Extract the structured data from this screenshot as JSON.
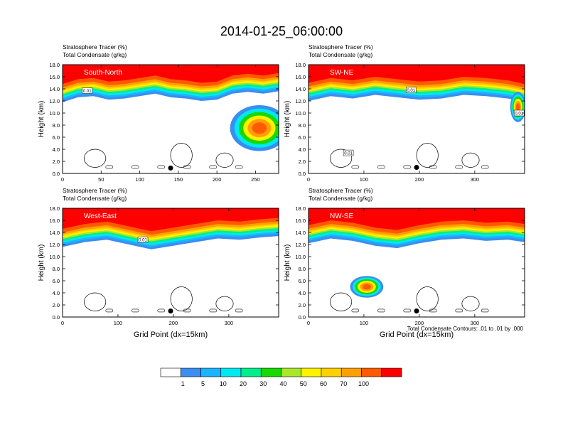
{
  "title": "2014-01-25_06:00:00",
  "contour_note": "Total Condensate Contours: .01 to .01 by .000",
  "colorbar": {
    "colors": [
      "#ffffff",
      "#3a8ef0",
      "#1ab4ff",
      "#00e8f0",
      "#00ee8a",
      "#18d800",
      "#a8e828",
      "#fff200",
      "#ffd000",
      "#ffa000",
      "#ff5a00",
      "#ff0000"
    ],
    "labels": [
      "1",
      "5",
      "10",
      "20",
      "30",
      "40",
      "50",
      "60",
      "70",
      "100"
    ]
  },
  "chart_data": [
    {
      "type": "heatmap",
      "header_line1": "Stratosphere Tracer   (%)",
      "header_line2": "Total Condensate   (g/kg)",
      "panel_label": "South-North",
      "ylabel": "Height (km)",
      "xlabel": "",
      "xlim": [
        0,
        280
      ],
      "ylim": [
        0,
        18
      ],
      "xticks": [
        "0",
        "50",
        "100",
        "150",
        "200",
        "250"
      ],
      "xtick_values": [
        0,
        50,
        100,
        150,
        200,
        250
      ],
      "yticks": [
        "0.0",
        "2.0",
        "4.0",
        "6.0",
        "8.0",
        "10.0",
        "12.0",
        "14.0",
        "16.0",
        "18.0"
      ],
      "contour_labels": [
        {
          "text": "0.01",
          "x": 32,
          "y": 13.7
        }
      ],
      "marker": {
        "x": 140,
        "y": 0.9
      },
      "tracer_base": [
        [
          0,
          13.6
        ],
        [
          20,
          14.4
        ],
        [
          40,
          14.6
        ],
        [
          60,
          14.0
        ],
        [
          80,
          14.2
        ],
        [
          100,
          14.6
        ],
        [
          120,
          15.0
        ],
        [
          140,
          14.4
        ],
        [
          160,
          14.2
        ],
        [
          180,
          13.8
        ],
        [
          200,
          14.0
        ],
        [
          220,
          15.0
        ],
        [
          240,
          15.3
        ],
        [
          260,
          15.0
        ],
        [
          280,
          15.4
        ]
      ],
      "blob": {
        "x": 255,
        "y": 7.5,
        "rx": 38,
        "ry": 3.8
      }
    },
    {
      "type": "heatmap",
      "header_line1": "Stratosphere Tracer   (%)",
      "header_line2": "Total Condensate   (g/kg)",
      "panel_label": "SW-NE",
      "ylabel": "Height (km)",
      "xlabel": "",
      "xlim": [
        0,
        390
      ],
      "ylim": [
        0,
        18
      ],
      "xticks": [
        "0",
        "100",
        "200",
        "300"
      ],
      "xtick_values": [
        0,
        100,
        200,
        300
      ],
      "yticks": [
        "0.0",
        "2.0",
        "4.0",
        "6.0",
        "8.0",
        "10.0",
        "12.0",
        "14.0",
        "16.0",
        "18.0"
      ],
      "contour_labels": [
        {
          "text": "0.01",
          "x": 185,
          "y": 13.8
        },
        {
          "text": "0.01",
          "x": 72,
          "y": 3.4
        },
        {
          "text": "0.01",
          "x": 380,
          "y": 10.0
        }
      ],
      "marker": {
        "x": 195,
        "y": 1.0
      },
      "tracer_base": [
        [
          0,
          13.8
        ],
        [
          40,
          14.6
        ],
        [
          80,
          14.2
        ],
        [
          120,
          14.8
        ],
        [
          160,
          14.4
        ],
        [
          200,
          14.0
        ],
        [
          240,
          14.2
        ],
        [
          280,
          14.8
        ],
        [
          320,
          14.6
        ],
        [
          360,
          14.2
        ],
        [
          390,
          13.6
        ]
      ],
      "blob": {
        "x": 378,
        "y": 11.0,
        "rx": 14,
        "ry": 2.5
      }
    },
    {
      "type": "heatmap",
      "header_line1": "Stratosphere Tracer   (%)",
      "header_line2": "Total Condensate   (g/kg)",
      "panel_label": "West-East",
      "ylabel": "Height (km)",
      "xlabel": "Grid Point (dx=15km)",
      "xlim": [
        0,
        390
      ],
      "ylim": [
        0,
        18
      ],
      "xticks": [
        "0",
        "100",
        "200",
        "300"
      ],
      "xtick_values": [
        0,
        100,
        200,
        300
      ],
      "yticks": [
        "0.0",
        "2.0",
        "4.0",
        "6.0",
        "8.0",
        "10.0",
        "12.0",
        "14.0",
        "16.0",
        "18.0"
      ],
      "contour_labels": [
        {
          "text": "0.01",
          "x": 145,
          "y": 12.8
        }
      ],
      "marker": {
        "x": 195,
        "y": 1.0
      },
      "tracer_base": [
        [
          0,
          13.4
        ],
        [
          40,
          14.2
        ],
        [
          80,
          14.6
        ],
        [
          120,
          13.8
        ],
        [
          160,
          13.0
        ],
        [
          200,
          13.6
        ],
        [
          240,
          14.2
        ],
        [
          280,
          14.8
        ],
        [
          320,
          14.6
        ],
        [
          360,
          15.0
        ],
        [
          390,
          15.2
        ]
      ],
      "blob": null
    },
    {
      "type": "heatmap",
      "header_line1": "Stratosphere Tracer   (%)",
      "header_line2": "Total Condensate   (g/kg)",
      "panel_label": "NW-SE",
      "ylabel": "Height (km)",
      "xlabel": "Grid Point (dx=15km)",
      "xlim": [
        0,
        390
      ],
      "ylim": [
        0,
        18
      ],
      "xticks": [
        "0",
        "100",
        "200",
        "300"
      ],
      "xtick_values": [
        0,
        100,
        200,
        300
      ],
      "yticks": [
        "0.0",
        "2.0",
        "4.0",
        "6.0",
        "8.0",
        "10.0",
        "12.0",
        "14.0",
        "16.0",
        "18.0"
      ],
      "contour_labels": [],
      "marker": {
        "x": 195,
        "y": 1.0
      },
      "tracer_base": [
        [
          0,
          14.0
        ],
        [
          40,
          14.8
        ],
        [
          80,
          14.4
        ],
        [
          120,
          13.6
        ],
        [
          160,
          13.2
        ],
        [
          200,
          14.0
        ],
        [
          240,
          14.6
        ],
        [
          280,
          14.8
        ],
        [
          320,
          14.4
        ],
        [
          360,
          14.6
        ],
        [
          390,
          14.2
        ]
      ],
      "blob": {
        "x": 105,
        "y": 5.0,
        "rx": 30,
        "ry": 1.8
      }
    }
  ]
}
